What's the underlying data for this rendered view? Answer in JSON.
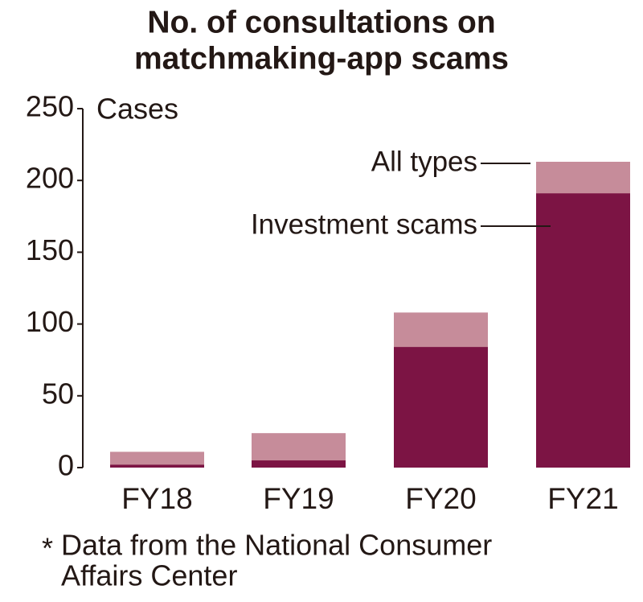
{
  "chart_data": {
    "type": "bar",
    "title": [
      "No. of consultations on",
      "matchmaking-app scams"
    ],
    "ylabel": "Cases",
    "categories": [
      "FY18",
      "FY19",
      "FY20",
      "FY21"
    ],
    "series": [
      {
        "name": "All types",
        "color": "#c68c9a",
        "values": [
          11,
          24,
          108,
          213
        ]
      },
      {
        "name": "Investment scams",
        "color": "#7c1444",
        "values": [
          2,
          5,
          84,
          191
        ]
      }
    ],
    "ylim": [
      0,
      250
    ],
    "yticks": [
      0,
      50,
      100,
      150,
      200,
      250
    ],
    "grid": false,
    "note_marker": "*",
    "note": [
      "Data from the National Consumer",
      "Affairs Center"
    ]
  }
}
